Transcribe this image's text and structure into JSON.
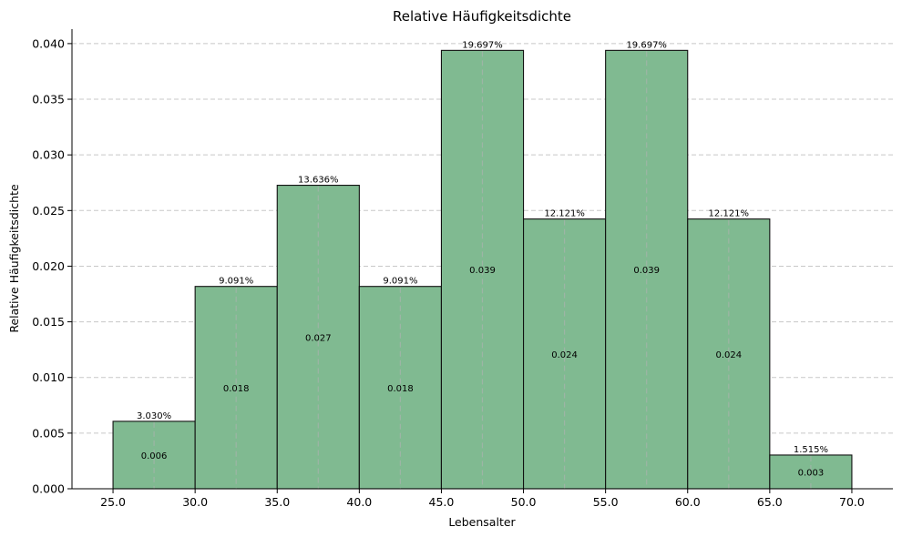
{
  "chart_data": {
    "type": "bar",
    "title": "Relative Häufigkeitsdichte",
    "xlabel": "Lebensalter",
    "ylabel": "Relative Häufigkeitsdichte",
    "bins": [
      {
        "left": 25.0,
        "right": 30.0,
        "density": 0.00606,
        "value_label": "0.006",
        "percent_label": "3.030%"
      },
      {
        "left": 30.0,
        "right": 35.0,
        "density": 0.01818,
        "value_label": "0.018",
        "percent_label": "9.091%"
      },
      {
        "left": 35.0,
        "right": 40.0,
        "density": 0.02727,
        "value_label": "0.027",
        "percent_label": "13.636%"
      },
      {
        "left": 40.0,
        "right": 45.0,
        "density": 0.01818,
        "value_label": "0.018",
        "percent_label": "9.091%"
      },
      {
        "left": 45.0,
        "right": 50.0,
        "density": 0.03939,
        "value_label": "0.039",
        "percent_label": "19.697%"
      },
      {
        "left": 50.0,
        "right": 55.0,
        "density": 0.02424,
        "value_label": "0.024",
        "percent_label": "12.121%"
      },
      {
        "left": 55.0,
        "right": 60.0,
        "density": 0.03939,
        "value_label": "0.039",
        "percent_label": "19.697%"
      },
      {
        "left": 60.0,
        "right": 65.0,
        "density": 0.02424,
        "value_label": "0.024",
        "percent_label": "12.121%"
      },
      {
        "left": 65.0,
        "right": 70.0,
        "density": 0.00303,
        "value_label": "0.003",
        "percent_label": "1.515%"
      }
    ],
    "xticks": [
      "25.0",
      "30.0",
      "35.0",
      "40.0",
      "45.0",
      "50.0",
      "55.0",
      "60.0",
      "65.0",
      "70.0"
    ],
    "yticks": [
      "0.000",
      "0.005",
      "0.010",
      "0.015",
      "0.020",
      "0.025",
      "0.030",
      "0.035",
      "0.040"
    ],
    "xlim": [
      22.5,
      72.5
    ],
    "ylim": [
      0,
      0.0413
    ],
    "grid": "y, dashed",
    "colors": {
      "bar_fill": "#80ba91",
      "bar_edge": "#111111",
      "grid": "#c8c8c8",
      "bin_center_line": "#9db5a5"
    }
  }
}
